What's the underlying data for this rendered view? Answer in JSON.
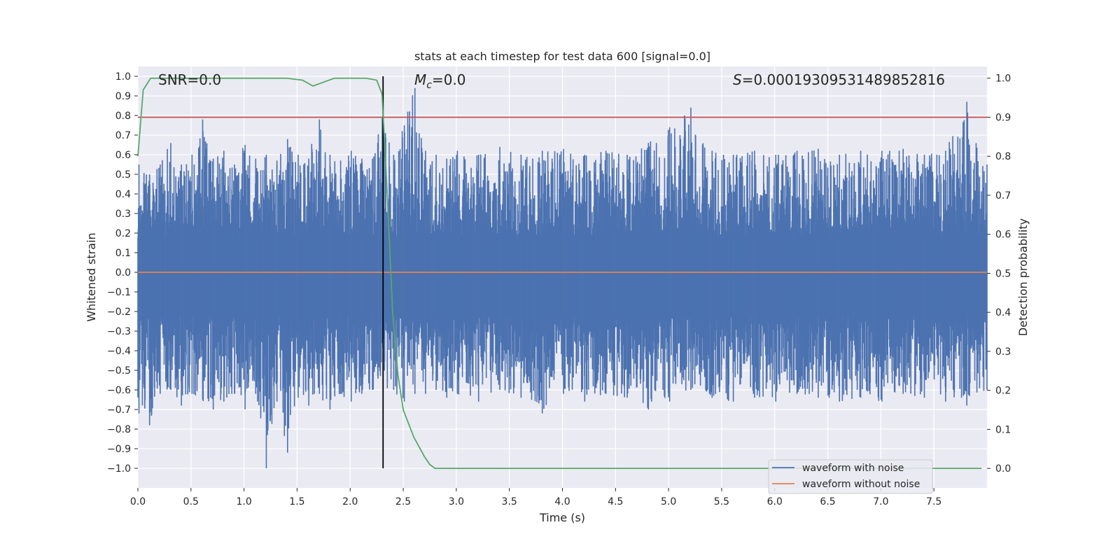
{
  "chart_data": {
    "type": "line",
    "title": "stats at each timestep for test data 600 [signal=0.0]",
    "xlabel": "Time (s)",
    "ylabel": "Whitened strain",
    "y2label": "Detection probability",
    "xlim": [
      0.0,
      8.0
    ],
    "ylim": [
      -1.1,
      1.05
    ],
    "y2lim": [
      -0.05,
      1.03
    ],
    "x_ticks": [
      "0.0",
      "0.5",
      "1.0",
      "1.5",
      "2.0",
      "2.5",
      "3.0",
      "3.5",
      "4.0",
      "4.5",
      "5.0",
      "5.5",
      "6.0",
      "6.5",
      "7.0",
      "7.5"
    ],
    "y_ticks": [
      "1.0",
      "0.9",
      "0.8",
      "0.7",
      "0.6",
      "0.5",
      "0.4",
      "0.3",
      "0.2",
      "0.1",
      "0.0",
      "−0.1",
      "−0.2",
      "−0.3",
      "−0.4",
      "−0.5",
      "−0.6",
      "−0.7",
      "−0.8",
      "−0.9",
      "−1.0"
    ],
    "y2_ticks": [
      "1.0",
      "0.9",
      "0.8",
      "0.7",
      "0.6",
      "0.5",
      "0.4",
      "0.3",
      "0.2",
      "0.1",
      "0.0"
    ],
    "grid": true,
    "legend_position": "lower-right",
    "annotations": {
      "snr": "SNR=0.0",
      "mc_symbol": "M",
      "mc_sub": "c",
      "mc_value": "=0.0",
      "s_symbol": "S",
      "s_value": "=0.00019309531489852816"
    },
    "series": [
      {
        "name": "waveform with noise",
        "axis": "left",
        "color": "#4c72b0",
        "envelope_x": [
          0.0,
          0.1,
          0.2,
          0.3,
          0.4,
          0.5,
          0.6,
          0.7,
          0.8,
          0.9,
          1.0,
          1.1,
          1.2,
          1.3,
          1.4,
          1.5,
          1.6,
          1.7,
          1.8,
          1.9,
          2.0,
          2.1,
          2.2,
          2.3,
          2.4,
          2.5,
          2.6,
          2.7,
          2.8,
          2.9,
          3.0,
          3.2,
          3.4,
          3.6,
          3.8,
          4.0,
          4.2,
          4.4,
          4.6,
          4.8,
          5.0,
          5.2,
          5.4,
          5.6,
          5.8,
          6.0,
          6.2,
          6.4,
          6.6,
          6.8,
          7.0,
          7.2,
          7.4,
          7.6,
          7.8,
          8.0
        ],
        "envelope_max": [
          0.55,
          0.5,
          0.55,
          0.66,
          0.55,
          0.6,
          0.78,
          0.58,
          0.62,
          0.55,
          0.65,
          0.58,
          0.6,
          0.57,
          0.68,
          0.6,
          0.58,
          0.78,
          0.6,
          0.57,
          0.62,
          0.58,
          0.58,
          0.8,
          0.6,
          0.75,
          0.94,
          0.62,
          0.6,
          0.58,
          0.62,
          0.6,
          0.64,
          0.6,
          0.62,
          0.63,
          0.6,
          0.62,
          0.6,
          0.66,
          0.74,
          0.84,
          0.62,
          0.6,
          0.62,
          0.6,
          0.62,
          0.63,
          0.6,
          0.62,
          0.62,
          0.63,
          0.6,
          0.62,
          0.87,
          0.55
        ],
        "envelope_min": [
          -0.72,
          -0.78,
          -0.62,
          -0.6,
          -0.68,
          -0.62,
          -0.65,
          -0.7,
          -0.66,
          -0.62,
          -0.7,
          -0.62,
          -1.0,
          -0.66,
          -0.92,
          -0.64,
          -0.68,
          -0.62,
          -0.7,
          -0.62,
          -0.66,
          -0.62,
          -0.6,
          -0.62,
          -0.6,
          -0.66,
          -0.62,
          -0.62,
          -0.6,
          -0.64,
          -0.62,
          -0.66,
          -0.6,
          -0.64,
          -0.72,
          -0.62,
          -0.66,
          -0.62,
          -0.64,
          -0.7,
          -0.66,
          -0.6,
          -0.64,
          -0.66,
          -0.64,
          -0.66,
          -0.62,
          -0.64,
          -0.66,
          -0.64,
          -0.66,
          -0.62,
          -0.64,
          -0.66,
          -0.68,
          -0.6
        ]
      },
      {
        "name": "waveform without noise",
        "axis": "left",
        "color": "#dd8452",
        "x": [
          0.0,
          8.0
        ],
        "y": [
          0.0,
          0.0
        ]
      },
      {
        "name": "detection probability",
        "axis": "right",
        "color": "#55a868",
        "x": [
          0.0,
          0.05,
          0.12,
          0.2,
          0.5,
          1.0,
          1.4,
          1.55,
          1.65,
          1.75,
          1.85,
          2.0,
          2.15,
          2.25,
          2.3,
          2.35,
          2.4,
          2.45,
          2.5,
          2.6,
          2.7,
          2.75,
          2.8,
          2.88,
          3.0,
          5.0,
          7.5,
          7.95
        ],
        "y": [
          0.8,
          0.97,
          1.0,
          1.0,
          1.0,
          1.0,
          1.0,
          0.995,
          0.98,
          0.99,
          1.0,
          1.0,
          1.0,
          0.995,
          0.96,
          0.7,
          0.4,
          0.24,
          0.15,
          0.08,
          0.03,
          0.01,
          0.0,
          0.0,
          0.0,
          0.0,
          0.0,
          0.0
        ]
      }
    ],
    "threshold_line": {
      "axis": "right",
      "value": 0.9,
      "color": "#c44e52"
    },
    "event_marker": {
      "x": 2.31,
      "y_from": -1.0,
      "y_to": 1.0,
      "color": "#000000"
    },
    "bar_color": "#4c72b0",
    "plot_bg": "#eaeaf2",
    "grid_color": "#ffffff"
  }
}
